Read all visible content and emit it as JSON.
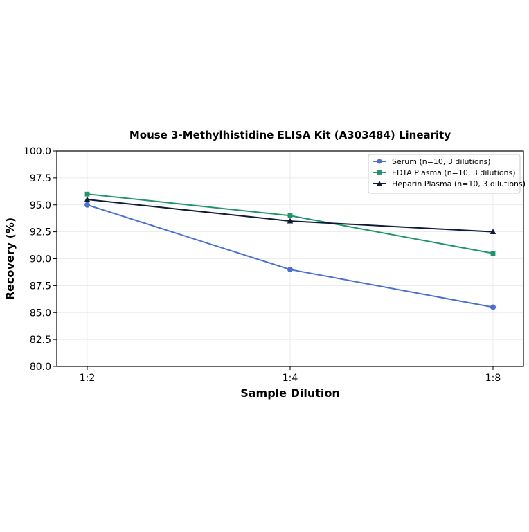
{
  "chart_data": {
    "type": "line",
    "title": "Mouse 3-Methylhistidine ELISA Kit (A303484) Linearity",
    "xlabel": "Sample Dilution",
    "ylabel": "Recovery (%)",
    "categories": [
      "1:2",
      "1:4",
      "1:8"
    ],
    "ylim": [
      80.0,
      100.0
    ],
    "yticks": [
      "80.0",
      "82.5",
      "85.0",
      "87.5",
      "90.0",
      "92.5",
      "95.0",
      "97.5",
      "100.0"
    ],
    "grid": true,
    "legend_position": "top-right",
    "series": [
      {
        "name": "Serum (n=10, 3 dilutions)",
        "values": [
          95.0,
          89.0,
          85.5
        ],
        "color": "#4c6fd6",
        "marker": "circle"
      },
      {
        "name": "EDTA Plasma (n=10, 3 dilutions)",
        "values": [
          96.0,
          94.0,
          90.5
        ],
        "color": "#20956b",
        "marker": "square"
      },
      {
        "name": "Heparin Plasma (n=10, 3 dilutions)",
        "values": [
          95.5,
          93.5,
          92.5
        ],
        "color": "#0f1a3a",
        "marker": "triangle"
      }
    ]
  }
}
